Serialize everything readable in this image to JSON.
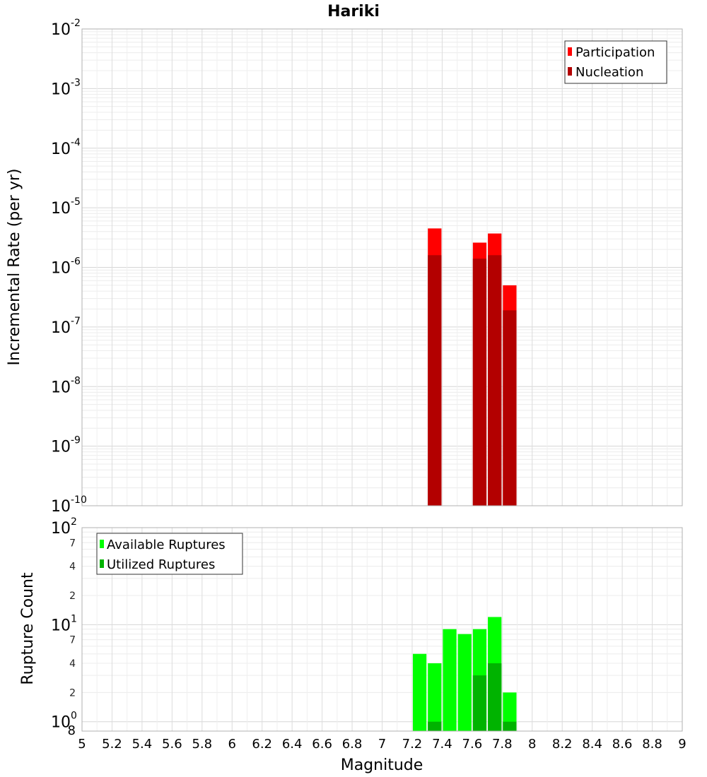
{
  "chart_data": [
    {
      "type": "bar",
      "panel": "top",
      "title": "Hariki",
      "xlabel": "Magnitude",
      "ylabel": "Incremental Rate (per yr)",
      "yscale": "log",
      "xlim": [
        5,
        9
      ],
      "ylim": [
        1e-10,
        0.01
      ],
      "grid": true,
      "legend_position": "top-right",
      "bin_width": 0.1,
      "y_tick_exponents": [
        "-10",
        "-9",
        "-8",
        "-7",
        "-6",
        "-5",
        "-4",
        "-3",
        "-2"
      ],
      "series": [
        {
          "name": "Participation",
          "color": "#ff0000",
          "x": [
            7.35,
            7.65,
            7.75,
            7.85
          ],
          "values": [
            4.5e-06,
            2.6e-06,
            3.7e-06,
            5e-07
          ]
        },
        {
          "name": "Nucleation",
          "color": "#b30000",
          "x": [
            7.35,
            7.65,
            7.75,
            7.85
          ],
          "values": [
            1.6e-06,
            1.4e-06,
            1.6e-06,
            1.9e-07
          ]
        }
      ]
    },
    {
      "type": "bar",
      "panel": "bottom",
      "xlabel": "Magnitude",
      "ylabel": "Rupture Count",
      "yscale": "log",
      "xlim": [
        5,
        9
      ],
      "ylim": [
        0.8,
        100
      ],
      "grid": true,
      "legend_position": "top-left",
      "bin_width": 0.1,
      "x_ticks": [
        "5",
        "5.2",
        "5.4",
        "5.6",
        "5.8",
        "6",
        "6.2",
        "6.4",
        "6.6",
        "6.8",
        "7",
        "7.2",
        "7.4",
        "7.6",
        "7.8",
        "8",
        "8.2",
        "8.4",
        "8.6",
        "8.8",
        "9"
      ],
      "y_major_ticks": [
        {
          "value": 1,
          "base": "10",
          "exp": "0"
        },
        {
          "value": 10,
          "base": "10",
          "exp": "1"
        },
        {
          "value": 100,
          "base": "10",
          "exp": "2"
        }
      ],
      "y_minor_ticks": [
        {
          "value": 0.8,
          "label": "8"
        },
        {
          "value": 2,
          "label": "2"
        },
        {
          "value": 4,
          "label": "4"
        },
        {
          "value": 7,
          "label": "7"
        },
        {
          "value": 20,
          "label": "2"
        },
        {
          "value": 40,
          "label": "4"
        },
        {
          "value": 70,
          "label": "7"
        }
      ],
      "series": [
        {
          "name": "Available Ruptures",
          "color": "#00ff00",
          "x": [
            7.25,
            7.35,
            7.45,
            7.55,
            7.65,
            7.75,
            7.85
          ],
          "values": [
            5,
            4,
            9,
            8,
            9,
            12,
            2
          ]
        },
        {
          "name": "Utilized Ruptures",
          "color": "#00b300",
          "x": [
            7.35,
            7.65,
            7.75,
            7.85
          ],
          "values": [
            1,
            3,
            4,
            1
          ]
        }
      ]
    }
  ]
}
